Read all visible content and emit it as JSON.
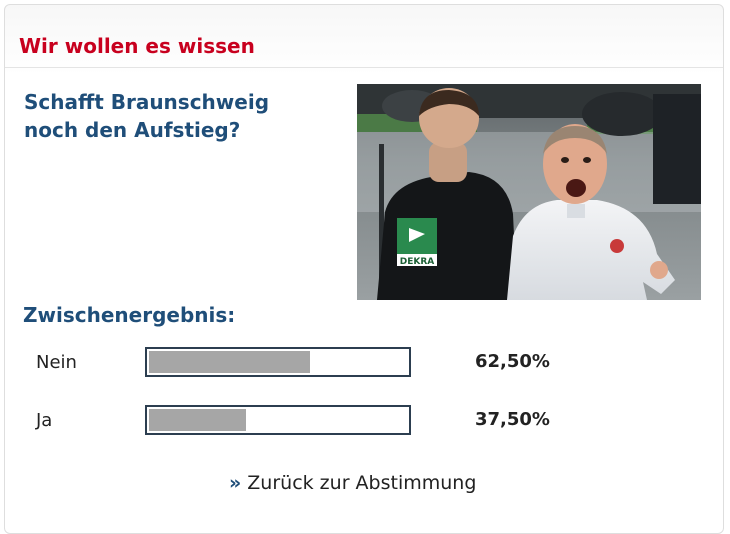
{
  "widget": {
    "title": "Wir wollen es wissen",
    "question": "Schafft Braunschweig noch den Aufstieg?",
    "photo_icon": "photo-referee-and-coach",
    "results_heading": "Zwischenergebnis:",
    "results": [
      {
        "label": "Nein",
        "percent_text": "62,50%",
        "value": 0.625
      },
      {
        "label": "Ja",
        "percent_text": "37,50%",
        "value": 0.375
      }
    ],
    "back_link": {
      "icon": "double-chevron-right-icon",
      "glyph": "»",
      "label": "Zurück zur Abstimmung"
    },
    "colors": {
      "title": "#c8001e",
      "question": "#1f4e79",
      "bar_fill": "#a6a6a6",
      "bar_border": "#2c3e50"
    },
    "photo_badge_text": "DEKRA"
  }
}
